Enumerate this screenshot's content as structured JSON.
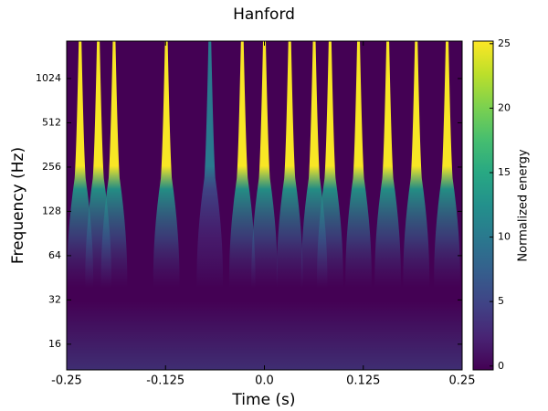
{
  "chart_data": {
    "type": "spectrogram",
    "title": "Hanford",
    "x_label": "Time (s)",
    "y_label": "Frequency (Hz)",
    "colorbar_label": "Normalized energy",
    "x": [
      -0.233,
      -0.21,
      -0.19,
      -0.124,
      -0.069,
      -0.028,
      0.0,
      0.032,
      0.063,
      0.083,
      0.119,
      0.156,
      0.192,
      0.231
    ],
    "values": [
      25,
      25,
      25,
      25,
      10,
      25,
      25,
      25,
      25,
      25,
      25,
      25,
      25,
      25
    ],
    "xlim": [
      -0.25,
      0.25
    ],
    "xticks": [
      -0.25,
      -0.125,
      {
        "value": 0,
        "label": "0.0"
      },
      0.125,
      0.25
    ],
    "ylim": [
      10.7,
      1840
    ],
    "yscale": "log2",
    "yticks": [
      16,
      32,
      64,
      128,
      256,
      512,
      1024
    ],
    "clim": [
      -0.3,
      25.2
    ],
    "colorbar_ticks": [
      0,
      5,
      10,
      15,
      20,
      25
    ],
    "colormap": "viridis"
  }
}
